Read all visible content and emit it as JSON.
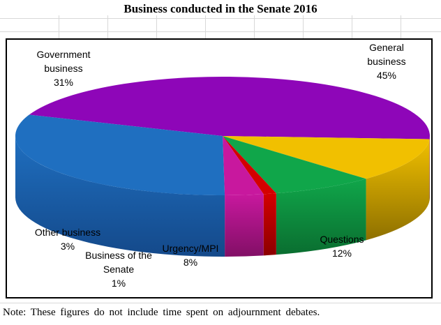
{
  "chart_data": {
    "type": "pie",
    "title": "Business conducted in the Senate 2016",
    "slices": [
      {
        "label_lines": [
          "General",
          "business"
        ],
        "value": 45,
        "display": "45%",
        "color": "#8E06B8",
        "side": "#4A0466"
      },
      {
        "label_lines": [
          "Questions"
        ],
        "value": 12,
        "display": "12%",
        "color": "#F1C000",
        "side": "#8E7000"
      },
      {
        "label_lines": [
          "Urgency/MPI"
        ],
        "value": 8,
        "display": "8%",
        "color": "#10A64A",
        "side": "#0A6E30"
      },
      {
        "label_lines": [
          "Business of the",
          "Senate"
        ],
        "value": 1,
        "display": "1%",
        "color": "#D40000",
        "side": "#8C0000"
      },
      {
        "label_lines": [
          "Other business"
        ],
        "value": 3,
        "display": "3%",
        "color": "#C8189E",
        "side": "#820F66"
      },
      {
        "label_lines": [
          "Government",
          "business"
        ],
        "value": 31,
        "display": "31%",
        "color": "#1F6FC0",
        "side": "#14498A"
      }
    ],
    "legend": "none",
    "style": "3d-pie"
  },
  "note": "Note: These figures do not include time spent on adjournment debates."
}
